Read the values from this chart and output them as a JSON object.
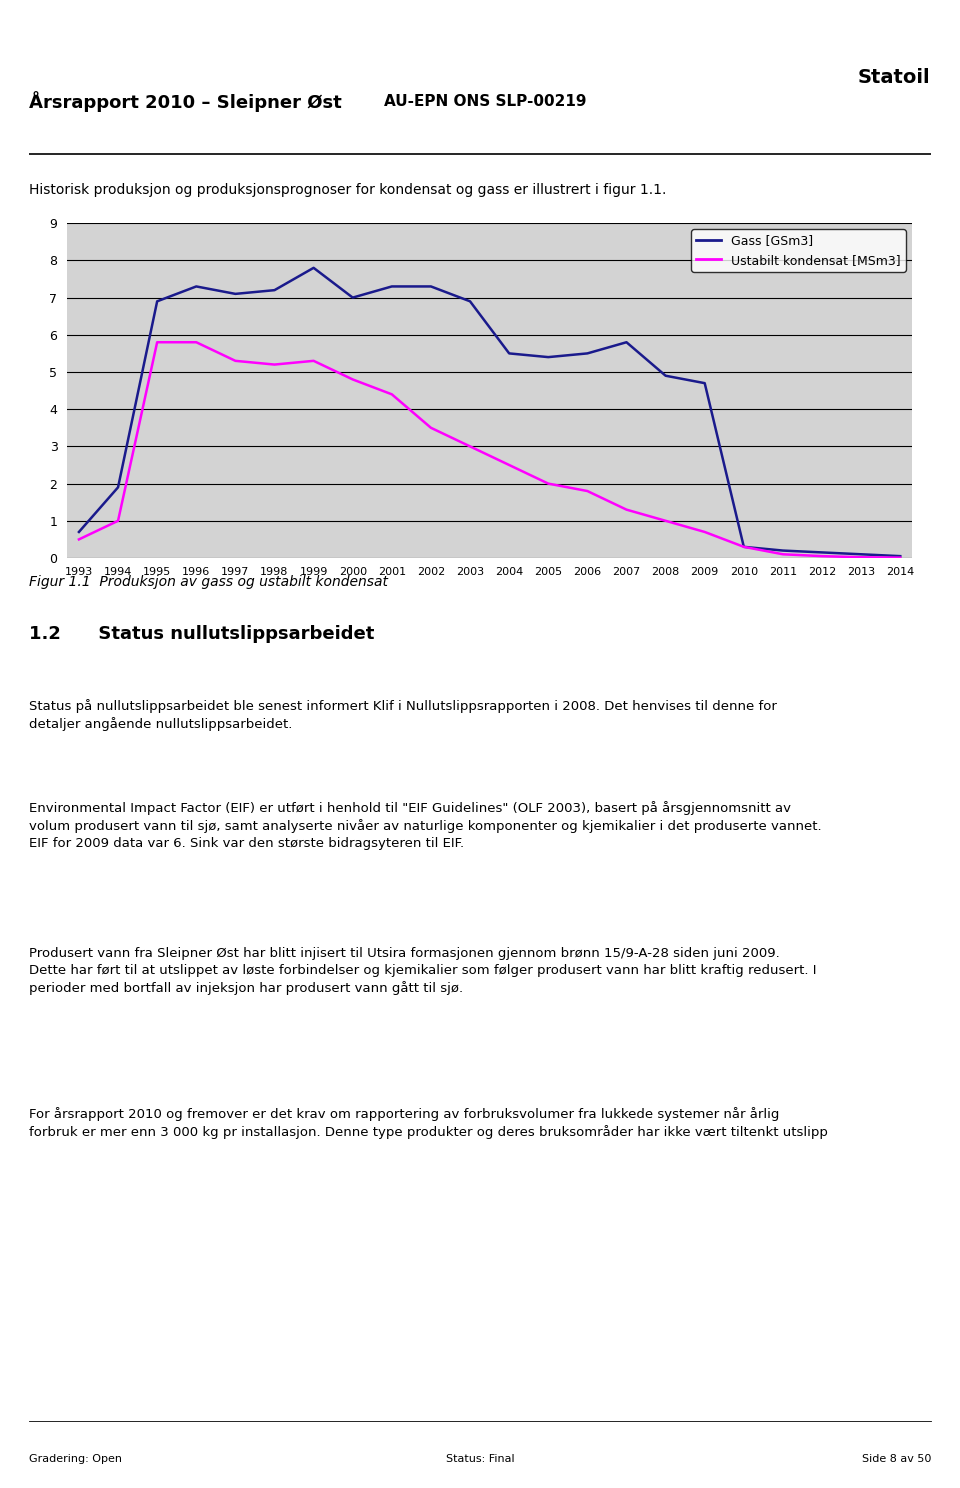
{
  "title_left": "Årsrapport 2010 – Sleipner Øst",
  "title_right": "AU-EPN ONS SLP-00219",
  "intro_text": "Historisk produksjon og produksjonsprognoser for kondensat og gass er illustrert i figur 1.1.",
  "figure_caption": "Figur 1.1  Produksjon av gass og ustabilt kondensat",
  "section_header": "1.2      Status nullutslippsarbeidet",
  "section_text1": "Status på nullutslippsarbeidet ble senest informert Klif i Nullutslippsrapporten i 2008. Det henvises til denne for\ndetaljer angående nullutslippsarbeidet.",
  "section_text2": "Environmental Impact Factor (EIF) er utført i henhold til \"EIF Guidelines\" (OLF 2003), basert på årsgjennomsnitt av\nvolum produsert vann til sjø, samt analyserte nivåer av naturlige komponenter og kjemikalier i det produserte vannet.\nEIF for 2009 data var 6. Sink var den største bidragsyteren til EIF.",
  "section_text3": "Produsert vann fra Sleipner Øst har blitt injisert til Utsira formasjonen gjennom brønn 15/9-A-28 siden juni 2009.\nDette har ført til at utslippet av løste forbindelser og kjemikalier som følger produsert vann har blitt kraftig redusert. I\nperioder med bortfall av injeksjon har produsert vann gått til sjø.",
  "section_text4": "For årsrapport 2010 og fremover er det krav om rapportering av forbruksvolumer fra lukkede systemer når årlig\nforbruk er mer enn 3 000 kg pr installasjon. Denne type produkter og deres bruksområder har ikke vært tiltenkt utslipp",
  "footer_left": "Gradering: Open",
  "footer_center": "Status: Final",
  "footer_right": "Side 8 av 50",
  "years": [
    1993,
    1994,
    1995,
    1996,
    1997,
    1998,
    1999,
    2000,
    2001,
    2002,
    2003,
    2004,
    2005,
    2006,
    2007,
    2008,
    2009,
    2010,
    2011,
    2012,
    2013,
    2014
  ],
  "gass": [
    0.7,
    1.9,
    6.9,
    7.3,
    7.1,
    7.2,
    7.8,
    7.0,
    7.3,
    7.3,
    6.9,
    5.5,
    5.4,
    5.5,
    5.8,
    4.9,
    4.7,
    0.3,
    0.2,
    0.15,
    0.1,
    0.05
  ],
  "kondensat": [
    0.5,
    1.0,
    5.8,
    5.8,
    5.3,
    5.2,
    5.3,
    4.8,
    4.4,
    3.5,
    3.0,
    2.5,
    2.0,
    1.8,
    1.3,
    1.0,
    0.7,
    0.3,
    0.1,
    0.05,
    0.02,
    0.01
  ],
  "gass_color": "#1a1a8c",
  "kondensat_color": "#ff00ff",
  "chart_bg": "#d3d3d3",
  "ylim": [
    0,
    9
  ],
  "yticks": [
    0,
    1,
    2,
    3,
    4,
    5,
    6,
    7,
    8,
    9
  ],
  "legend_gass": "Gass [GSm3]",
  "legend_kondensat": "Ustabilt kondensat [MSm3]"
}
